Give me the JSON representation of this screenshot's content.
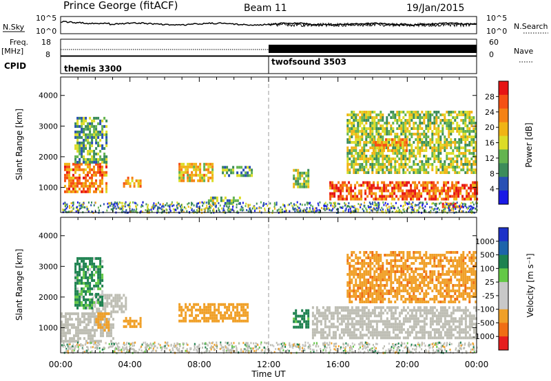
{
  "header": {
    "title": "Prince George (fitACF)",
    "beam": "Beam 11",
    "date": "19/Jan/2015"
  },
  "status_panel_1": {
    "left_label": "N.Sky",
    "left_ticks": [
      "10^5",
      "10^0"
    ],
    "right_ticks": [
      "10^5",
      "10^0"
    ],
    "right_label": "N.Search"
  },
  "status_panel_2": {
    "left_label_top": "Freq.",
    "left_label_unit": "[MHz]",
    "left_ticks": [
      "18",
      "8"
    ],
    "right_ticks": [
      "60",
      "0"
    ],
    "right_label": "Nave"
  },
  "cpid": {
    "label": "CPID",
    "modes": [
      {
        "name": "themis 3300",
        "start_hour": 0,
        "end_hour": 12
      },
      {
        "name": "twofsound 3503",
        "start_hour": 12,
        "end_hour": 24
      }
    ]
  },
  "x_axis": {
    "label": "Time UT",
    "tick_labels": [
      "00:00",
      "04:00",
      "08:00",
      "12:00",
      "16:00",
      "20:00",
      "00:00"
    ],
    "tick_hours": [
      0,
      4,
      8,
      12,
      16,
      20,
      24
    ]
  },
  "power_panel": {
    "ylabel": "Slant Range [km]",
    "y_ticks": [
      "1000",
      "2000",
      "3000",
      "4000"
    ],
    "colorbar_label": "Power [dB]",
    "colorbar_ticks": [
      "4",
      "8",
      "12",
      "16",
      "20",
      "24",
      "28"
    ]
  },
  "velocity_panel": {
    "ylabel": "Slant Range [km]",
    "y_ticks": [
      "1000",
      "2000",
      "3000",
      "4000"
    ],
    "colorbar_label": "Velocity [m s⁻¹]",
    "colorbar_ticks": [
      "1000",
      "500",
      "100",
      "25",
      "-25",
      "-100",
      "-500",
      "-1000"
    ]
  },
  "colors": {
    "power_scale": [
      "#1a1ae6",
      "#2850b4",
      "#3c8c5a",
      "#64b450",
      "#dcdc28",
      "#f0b414",
      "#f58214",
      "#f55014",
      "#e61414"
    ],
    "velocity_scale": [
      "#1e32c8",
      "#1e64aa",
      "#1e8250",
      "#64c846",
      "#c8c8c8",
      "#c8c8c8",
      "#f0a028",
      "#f06e14",
      "#e61e1e"
    ],
    "ground_scatter": "#bebeb4"
  },
  "chart_data": [
    {
      "type": "heatmap",
      "title": "Prince George (fitACF)",
      "xlabel": "Time UT",
      "ylabel": "Slant Range [km]",
      "xlim": [
        0,
        24
      ],
      "ylim": [
        180,
        4600
      ],
      "colorbar": {
        "label": "Power [dB]",
        "range": [
          0,
          30
        ]
      },
      "echo_regions": [
        {
          "t0": 0.2,
          "t1": 2.7,
          "r0": 900,
          "r1": 1800,
          "value": 22
        },
        {
          "t0": 0.8,
          "t1": 2.6,
          "r0": 1800,
          "r1": 3300,
          "value": 10
        },
        {
          "t0": 3.6,
          "t1": 4.6,
          "r0": 1050,
          "r1": 1350,
          "value": 20
        },
        {
          "t0": 6.8,
          "t1": 8.8,
          "r0": 1200,
          "r1": 1800,
          "value": 18
        },
        {
          "t0": 9.3,
          "t1": 11.0,
          "r0": 1400,
          "r1": 1700,
          "value": 10
        },
        {
          "t0": 8.5,
          "t1": 10.4,
          "r0": 500,
          "r1": 700,
          "value": 12
        },
        {
          "t0": 13.4,
          "t1": 14.3,
          "r0": 1000,
          "r1": 1600,
          "value": 14
        },
        {
          "t0": 15.5,
          "t1": 24.0,
          "r0": 650,
          "r1": 1200,
          "value": 24
        },
        {
          "t0": 22.0,
          "t1": 23.2,
          "r0": 350,
          "r1": 500,
          "value": 28
        },
        {
          "t0": 16.5,
          "t1": 24.0,
          "r0": 1500,
          "r1": 3500,
          "value": 14
        },
        {
          "t0": 18.0,
          "t1": 20.0,
          "r0": 2200,
          "r1": 2600,
          "value": 20
        }
      ]
    },
    {
      "type": "heatmap",
      "xlabel": "Time UT",
      "ylabel": "Slant Range [km]",
      "xlim": [
        0,
        24
      ],
      "ylim": [
        180,
        4600
      ],
      "colorbar": {
        "label": "Velocity [m s⁻¹]",
        "range": [
          -1000,
          1000
        ]
      },
      "echo_regions": [
        {
          "t0": 0.0,
          "t1": 3.0,
          "r0": 600,
          "r1": 1500,
          "value": 0,
          "ground_scatter": true
        },
        {
          "t0": 1.8,
          "t1": 3.8,
          "r0": 1500,
          "r1": 2100,
          "value": 0,
          "ground_scatter": true
        },
        {
          "t0": 0.8,
          "t1": 2.4,
          "r0": 1600,
          "r1": 3300,
          "value": 150
        },
        {
          "t0": 2.0,
          "t1": 2.8,
          "r0": 900,
          "r1": 1500,
          "value": -300
        },
        {
          "t0": 3.6,
          "t1": 4.6,
          "r0": 1050,
          "r1": 1350,
          "value": -300
        },
        {
          "t0": 6.8,
          "t1": 10.8,
          "r0": 1200,
          "r1": 1800,
          "value": -300
        },
        {
          "t0": 13.4,
          "t1": 14.3,
          "r0": 1000,
          "r1": 1600,
          "value": 200
        },
        {
          "t0": 14.5,
          "t1": 24.0,
          "r0": 650,
          "r1": 1700,
          "value": 0,
          "ground_scatter": true
        },
        {
          "t0": 16.5,
          "t1": 24.0,
          "r0": 1800,
          "r1": 3500,
          "value": -400
        }
      ]
    }
  ]
}
